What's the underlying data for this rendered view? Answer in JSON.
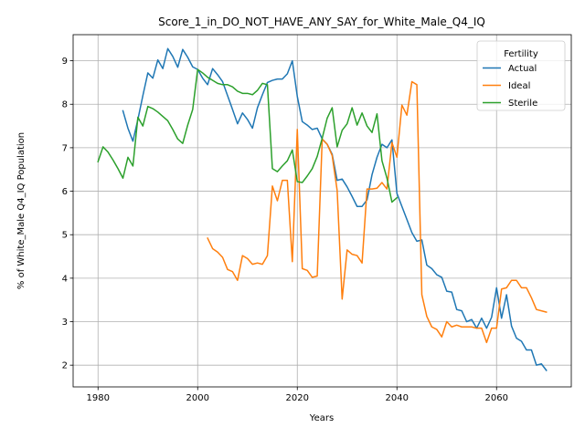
{
  "chart_data": {
    "type": "line",
    "title": "Score_1_in_DO_NOT_HAVE_ANY_SAY_for_White_Male_Q4_IQ",
    "xlabel": "Years",
    "ylabel": "% of White_Male Q4_IQ Population",
    "xlim": [
      1975,
      2075
    ],
    "ylim": [
      1.5,
      9.6
    ],
    "xticks": [
      1980,
      2000,
      2020,
      2040,
      2060
    ],
    "yticks": [
      2,
      3,
      4,
      5,
      6,
      7,
      8,
      9
    ],
    "grid": true,
    "legend": {
      "title": "Fertility",
      "placement": "top-right"
    },
    "series": [
      {
        "name": "Actual",
        "color": "#1f77b4",
        "x": [
          1985,
          1986,
          1987,
          1988,
          1989,
          1990,
          1991,
          1992,
          1993,
          1994,
          1995,
          1996,
          1997,
          1998,
          1999,
          2000,
          2001,
          2002,
          2003,
          2004,
          2005,
          2006,
          2007,
          2008,
          2009,
          2010,
          2011,
          2012,
          2013,
          2014,
          2015,
          2016,
          2017,
          2018,
          2019,
          2020,
          2021,
          2022,
          2023,
          2024,
          2025,
          2026,
          2027,
          2028,
          2029,
          2030,
          2031,
          2032,
          2033,
          2034,
          2035,
          2036,
          2037,
          2038,
          2039,
          2040,
          2041,
          2042,
          2043,
          2044,
          2045,
          2046,
          2047,
          2048,
          2049,
          2050,
          2051,
          2052,
          2053,
          2054,
          2055,
          2056,
          2057,
          2058,
          2059,
          2060,
          2061,
          2062,
          2063,
          2064,
          2065,
          2066,
          2067,
          2068,
          2069,
          2070
        ],
        "values": [
          7.85,
          7.45,
          7.15,
          7.65,
          8.2,
          8.72,
          8.6,
          9.02,
          8.82,
          9.28,
          9.1,
          8.85,
          9.26,
          9.08,
          8.86,
          8.8,
          8.6,
          8.45,
          8.82,
          8.68,
          8.52,
          8.2,
          7.88,
          7.55,
          7.8,
          7.65,
          7.45,
          7.92,
          8.22,
          8.5,
          8.55,
          8.58,
          8.58,
          8.7,
          9.0,
          8.18,
          7.6,
          7.52,
          7.42,
          7.45,
          7.2,
          7.08,
          6.85,
          6.25,
          6.28,
          6.1,
          5.88,
          5.65,
          5.65,
          5.8,
          6.38,
          6.78,
          7.08,
          7.0,
          7.18,
          5.95,
          5.65,
          5.35,
          5.05,
          4.85,
          4.88,
          4.3,
          4.22,
          4.08,
          4.02,
          3.7,
          3.68,
          3.28,
          3.25,
          3.0,
          3.05,
          2.85,
          3.08,
          2.85,
          3.1,
          3.78,
          3.08,
          3.62,
          2.9,
          2.62,
          2.55,
          2.35,
          2.35,
          2.0,
          2.03,
          1.88
        ]
      },
      {
        "name": "Ideal",
        "color": "#ff7f0e",
        "x": [
          2002,
          2003,
          2004,
          2005,
          2006,
          2007,
          2008,
          2009,
          2010,
          2011,
          2012,
          2013,
          2014,
          2015,
          2016,
          2017,
          2018,
          2019,
          2020,
          2021,
          2022,
          2023,
          2024,
          2025,
          2026,
          2027,
          2028,
          2029,
          2030,
          2031,
          2032,
          2033,
          2034,
          2035,
          2036,
          2037,
          2038,
          2039,
          2040,
          2041,
          2042,
          2043,
          2044,
          2045,
          2046,
          2047,
          2048,
          2049,
          2050,
          2051,
          2052,
          2053,
          2054,
          2055,
          2056,
          2057,
          2058,
          2059,
          2060,
          2061,
          2062,
          2063,
          2064,
          2065,
          2066,
          2067,
          2068,
          2069,
          2070
        ],
        "values": [
          4.92,
          4.68,
          4.6,
          4.48,
          4.2,
          4.15,
          3.95,
          4.52,
          4.45,
          4.32,
          4.35,
          4.32,
          4.52,
          6.12,
          5.78,
          6.25,
          6.25,
          4.38,
          7.42,
          4.22,
          4.18,
          4.02,
          4.05,
          7.2,
          7.08,
          6.82,
          6.02,
          3.52,
          4.65,
          4.55,
          4.52,
          4.35,
          6.05,
          6.05,
          6.07,
          6.2,
          6.05,
          7.12,
          6.78,
          7.98,
          7.75,
          8.52,
          8.45,
          3.62,
          3.12,
          2.88,
          2.82,
          2.65,
          3.0,
          2.88,
          2.92,
          2.88,
          2.88,
          2.88,
          2.85,
          2.85,
          2.52,
          2.85,
          2.85,
          3.75,
          3.78,
          3.95,
          3.95,
          3.78,
          3.78,
          3.55,
          3.28,
          3.25,
          3.22
        ]
      },
      {
        "name": "Sterile",
        "color": "#2ca02c",
        "x": [
          1980,
          1981,
          1982,
          1983,
          1984,
          1985,
          1986,
          1987,
          1988,
          1989,
          1990,
          1991,
          1992,
          1993,
          1994,
          1995,
          1996,
          1997,
          1998,
          1999,
          2000,
          2001,
          2002,
          2003,
          2004,
          2005,
          2006,
          2007,
          2008,
          2009,
          2010,
          2011,
          2012,
          2013,
          2014,
          2015,
          2016,
          2017,
          2018,
          2019,
          2020,
          2021,
          2022,
          2023,
          2024,
          2025,
          2026,
          2027,
          2028,
          2029,
          2030,
          2031,
          2032,
          2033,
          2034,
          2035,
          2036,
          2037,
          2038,
          2039,
          2040
        ],
        "values": [
          6.68,
          7.02,
          6.9,
          6.72,
          6.52,
          6.3,
          6.78,
          6.58,
          7.7,
          7.5,
          7.95,
          7.9,
          7.82,
          7.72,
          7.62,
          7.42,
          7.2,
          7.1,
          7.52,
          7.88,
          8.8,
          8.72,
          8.62,
          8.55,
          8.48,
          8.45,
          8.45,
          8.4,
          8.3,
          8.25,
          8.25,
          8.22,
          8.32,
          8.48,
          8.45,
          6.52,
          6.45,
          6.58,
          6.7,
          6.95,
          6.22,
          6.2,
          6.35,
          6.52,
          6.8,
          7.22,
          7.68,
          7.92,
          7.02,
          7.4,
          7.55,
          7.92,
          7.52,
          7.8,
          7.5,
          7.35,
          7.78,
          6.7,
          6.3,
          5.75,
          5.85
        ]
      }
    ]
  }
}
